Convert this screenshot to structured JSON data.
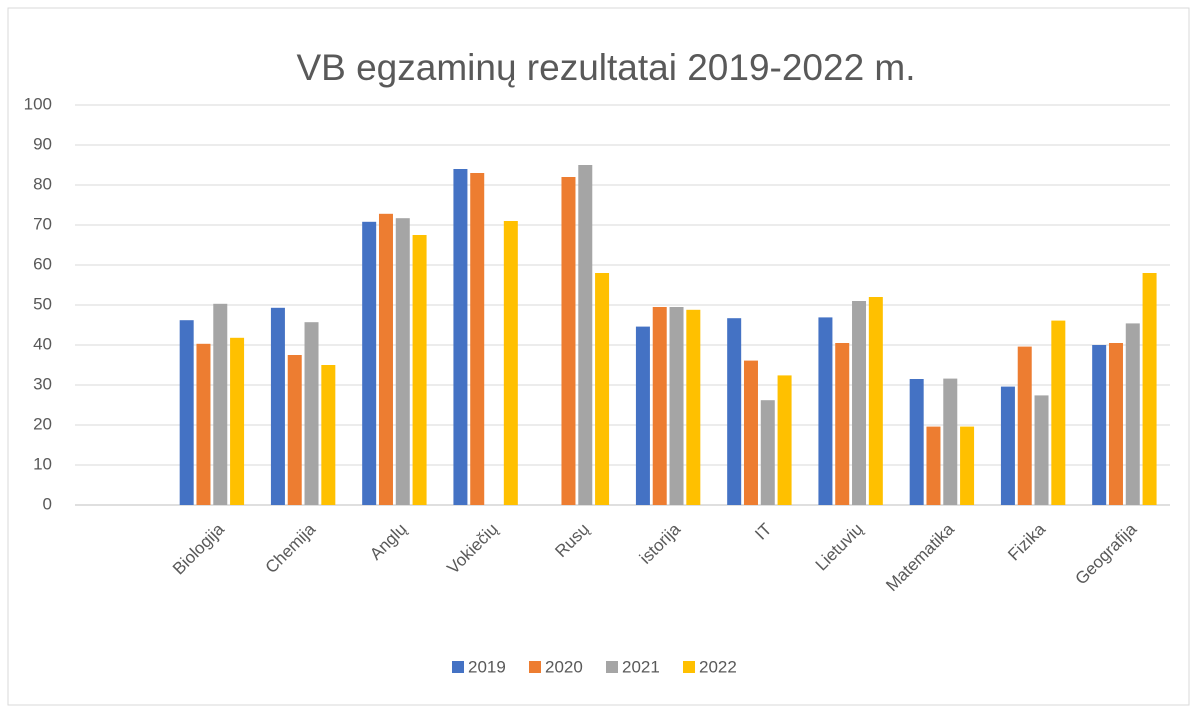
{
  "chart_data": {
    "type": "bar",
    "title": "VB egzaminų rezultatai 2019-2022 m.",
    "categories": [
      null,
      "Biologija",
      "Chemija",
      "Anglų",
      "Vokiečių",
      "Rusų",
      "istorija",
      "IT",
      "Lietuvių",
      "Matematika",
      "Fizika",
      "Geografija"
    ],
    "series": [
      {
        "name": "2019",
        "color": "#4472c4",
        "values": [
          null,
          46.2,
          49.3,
          70.8,
          84,
          null,
          44.6,
          46.7,
          46.9,
          31.5,
          29.6,
          40
        ]
      },
      {
        "name": "2020",
        "color": "#ed7d31",
        "values": [
          null,
          40.3,
          37.5,
          72.8,
          83,
          82,
          49.5,
          36.1,
          40.5,
          19.6,
          39.6,
          40.5
        ]
      },
      {
        "name": "2021",
        "color": "#a5a5a5",
        "values": [
          null,
          50.3,
          45.7,
          71.7,
          null,
          85,
          49.5,
          26.2,
          51,
          31.6,
          27.4,
          45.4
        ]
      },
      {
        "name": "2022",
        "color": "#ffc000",
        "values": [
          null,
          41.8,
          35,
          67.5,
          71,
          58,
          48.8,
          32.4,
          52,
          19.6,
          46.1,
          58
        ]
      }
    ],
    "ylim": [
      0,
      100
    ],
    "yticks": [
      0,
      10,
      20,
      30,
      40,
      50,
      60,
      70,
      80,
      90,
      100
    ],
    "grid": true,
    "legend": "bottom"
  }
}
